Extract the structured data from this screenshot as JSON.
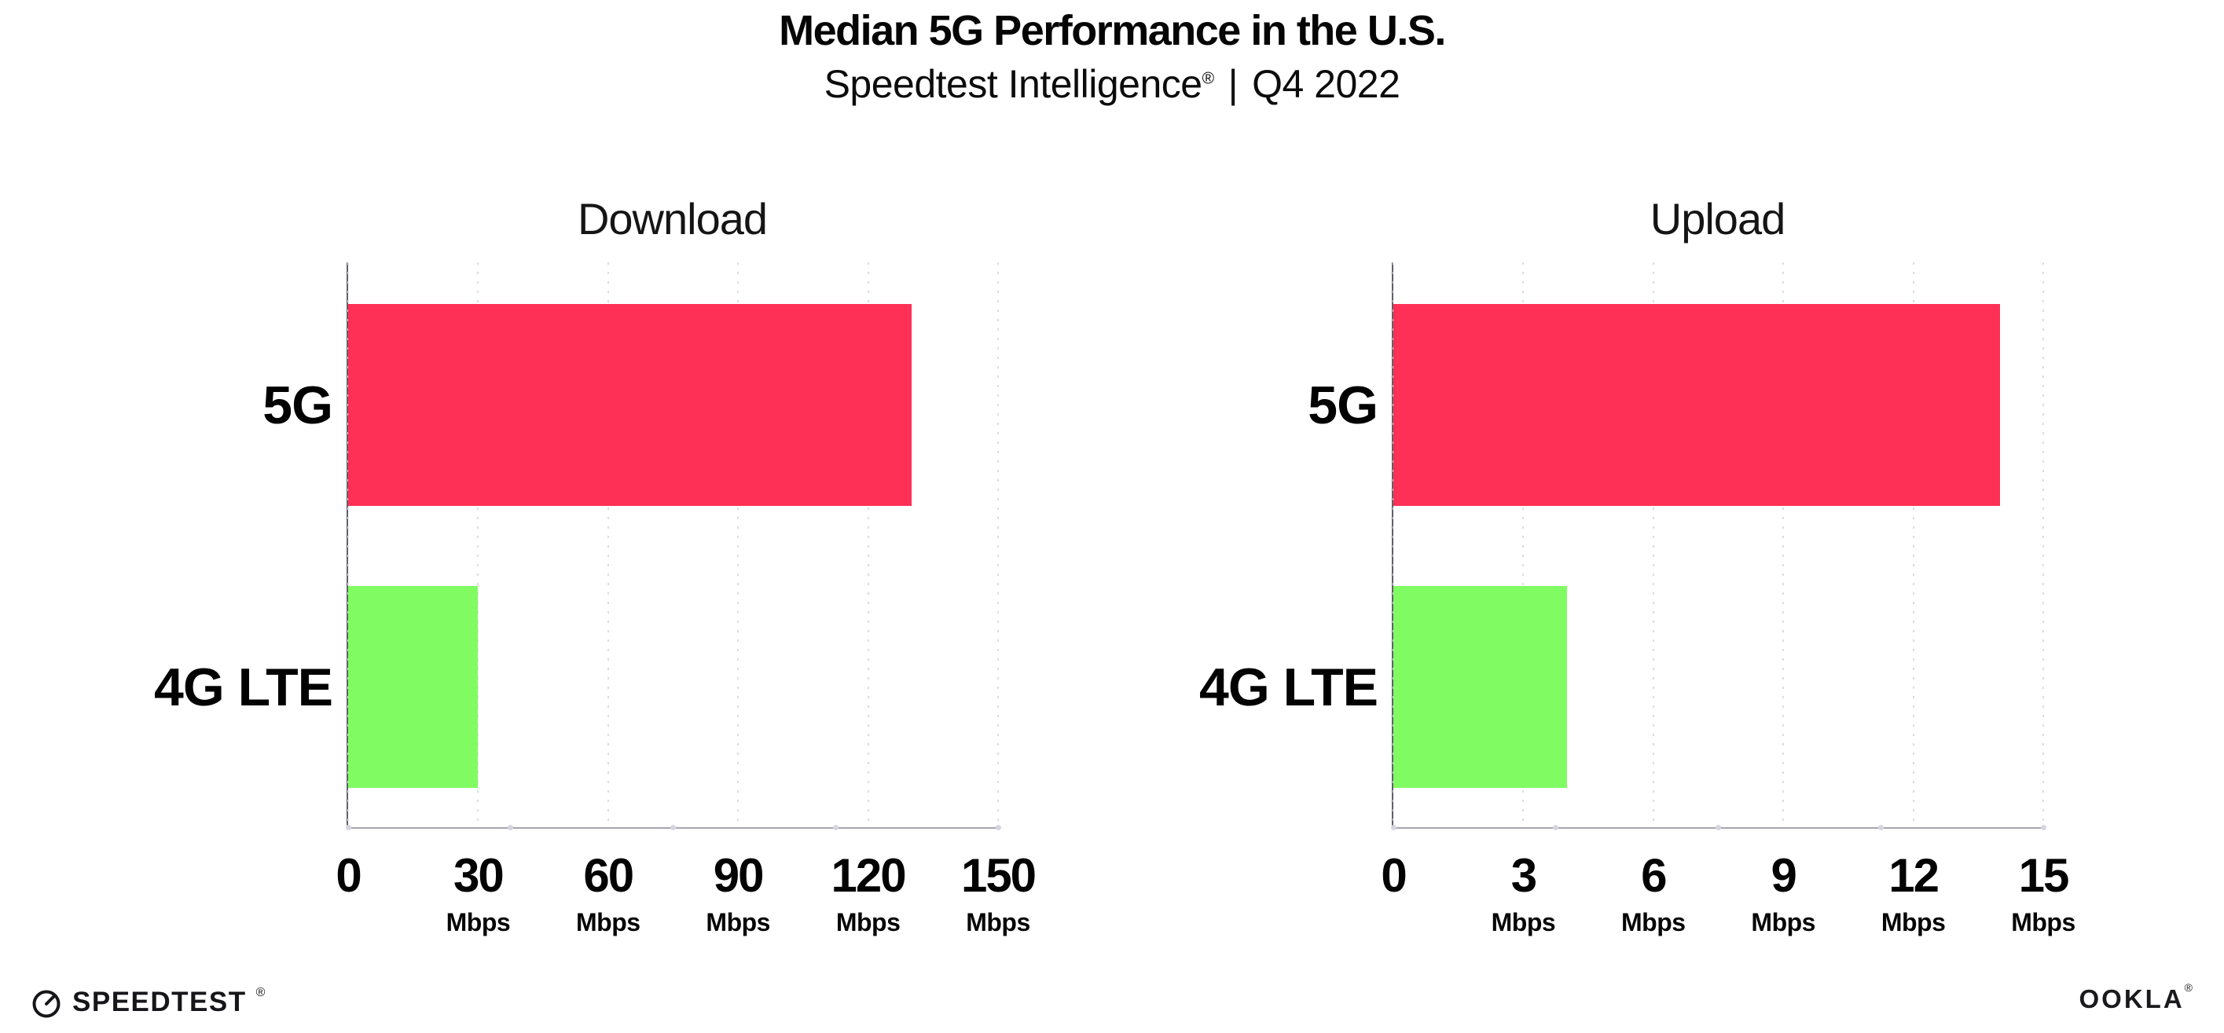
{
  "header": {
    "title": "Median 5G Performance in the U.S.",
    "subtitle": {
      "brand": "Speedtest Intelligence",
      "reg_mark": "®",
      "separator": "|",
      "period": "Q4 2022"
    }
  },
  "chart_data": [
    {
      "type": "bar",
      "orientation": "horizontal",
      "title": "Download",
      "categories": [
        "5G",
        "4G LTE"
      ],
      "values": [
        130,
        30
      ],
      "unit": "Mbps",
      "xlim": [
        0,
        150
      ],
      "xticks": [
        0,
        30,
        60,
        90,
        120,
        150
      ],
      "bar_colors": [
        "#ff3056",
        "#80fb62"
      ],
      "legend": "none",
      "grid": "vertical-dotted"
    },
    {
      "type": "bar",
      "orientation": "horizontal",
      "title": "Upload",
      "categories": [
        "5G",
        "4G LTE"
      ],
      "values": [
        14,
        4
      ],
      "unit": "Mbps",
      "xlim": [
        0,
        15
      ],
      "xticks": [
        0,
        3,
        6,
        9,
        12,
        15
      ],
      "bar_colors": [
        "#ff3056",
        "#80fb62"
      ],
      "legend": "none",
      "grid": "vertical-dotted"
    }
  ],
  "footer": {
    "speedtest_label": "SPEEDTEST",
    "speedtest_mark": "®",
    "ookla_label": "OOKLA",
    "ookla_mark": "®"
  },
  "colors": {
    "bar_5g": "#ff3056",
    "bar_4g_lte": "#80fb62",
    "gridline": "#dcdce6",
    "axis_x": "#a6a6b0",
    "axis_y": "#60606a",
    "text": "#050505",
    "background": "#ffffff"
  }
}
